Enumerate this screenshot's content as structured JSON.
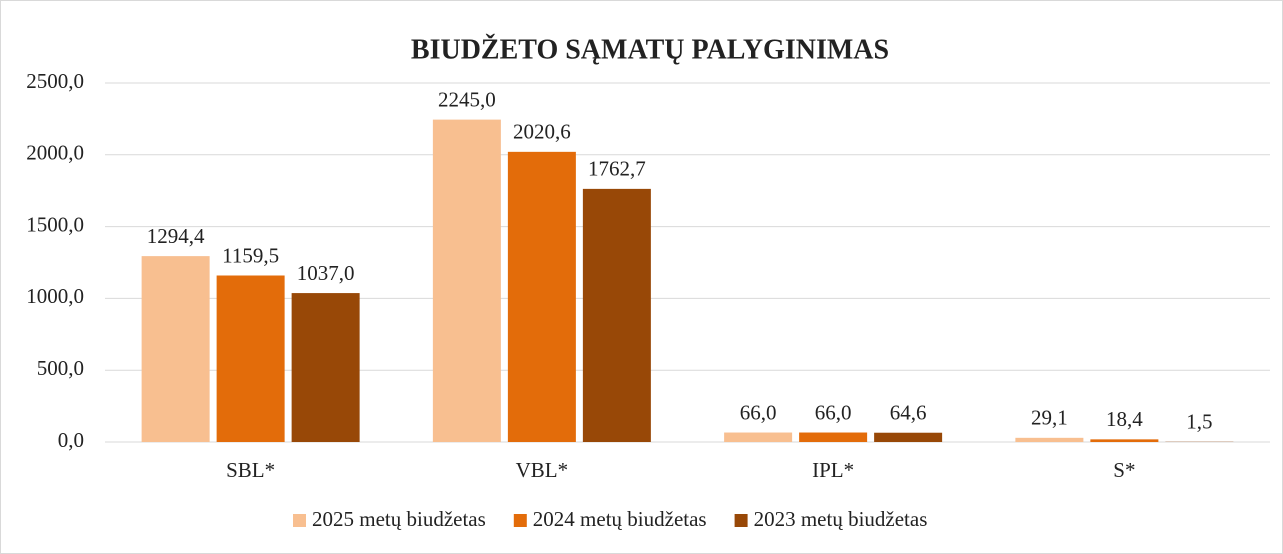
{
  "chart_data": {
    "type": "bar",
    "title": "BIUDŽETO SĄMATŲ PALYGINIMAS",
    "categories": [
      "SBL*",
      "VBL*",
      "IPL*",
      "S*"
    ],
    "series": [
      {
        "name": "2025 metų biudžetas",
        "color": "#f8bf90",
        "values": [
          1294.4,
          2245.0,
          66.0,
          29.1
        ],
        "value_labels": [
          "1294,4",
          "2245,0",
          "66,0",
          "29,1"
        ]
      },
      {
        "name": "2024 metų biudžetas",
        "color": "#e36c0a",
        "values": [
          1159.5,
          2020.6,
          66.0,
          18.4
        ],
        "value_labels": [
          "1159,5",
          "2020,6",
          "66,0",
          "18,4"
        ]
      },
      {
        "name": "2023 metų biudžetas",
        "color": "#984807",
        "values": [
          1037.0,
          1762.7,
          64.6,
          1.5
        ],
        "value_labels": [
          "1037,0",
          "1762,7",
          "64,6",
          "1,5"
        ]
      }
    ],
    "ylim": [
      0,
      2500
    ],
    "yticks": [
      {
        "value": 0,
        "label": "0,0"
      },
      {
        "value": 500,
        "label": "500,0"
      },
      {
        "value": 1000,
        "label": "1000,0"
      },
      {
        "value": 1500,
        "label": "1500,0"
      },
      {
        "value": 2000,
        "label": "2000,0"
      },
      {
        "value": 2500,
        "label": "2500,0"
      }
    ],
    "grid": true,
    "legend": "bottom"
  }
}
